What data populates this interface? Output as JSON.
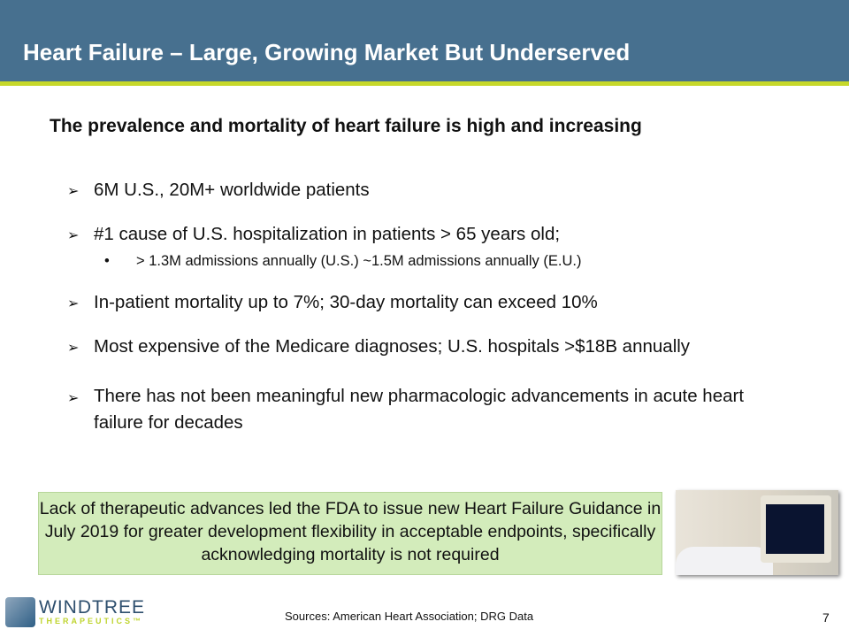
{
  "header": {
    "title": "Heart Failure – Large, Growing Market But Underserved"
  },
  "subtitle": "The prevalence and mortality of heart failure is high and increasing",
  "bullets": [
    {
      "icon": "arrow-bullet-icon",
      "text": "6M U.S., 20M+ worldwide patients"
    },
    {
      "icon": "arrow-bullet-icon",
      "text": "#1 cause of U.S. hospitalization in patients > 65 years old;"
    },
    {
      "icon": "arrow-bullet-icon",
      "text": "In-patient mortality up to 7%; 30-day mortality can exceed 10%"
    },
    {
      "icon": "arrow-bullet-icon",
      "text": "Most expensive of the Medicare diagnoses; U.S. hospitals >$18B annually"
    },
    {
      "icon": "arrow-bullet-icon",
      "text": "There has not been meaningful new pharmacologic advancements in acute heart failure for decades"
    }
  ],
  "sub_bullet": {
    "marker": "•",
    "text": "> 1.3M admissions annually (U.S.) ~1.5M admissions annually (E.U.)"
  },
  "callout": "Lack of therapeutic advances led the FDA to issue new Heart Failure Guidance in July 2019 for greater development flexibility in acceptable endpoints, specifically acknowledging mortality is not required",
  "logo": {
    "name": "WINDTREE",
    "tagline": "THERAPEUTICS™"
  },
  "footer": {
    "sources": "Sources: American Heart Association; DRG Data",
    "page": "7"
  },
  "colors": {
    "header": "#47708f",
    "accent": "#c6d82a",
    "callout": "#d3ecbb"
  }
}
